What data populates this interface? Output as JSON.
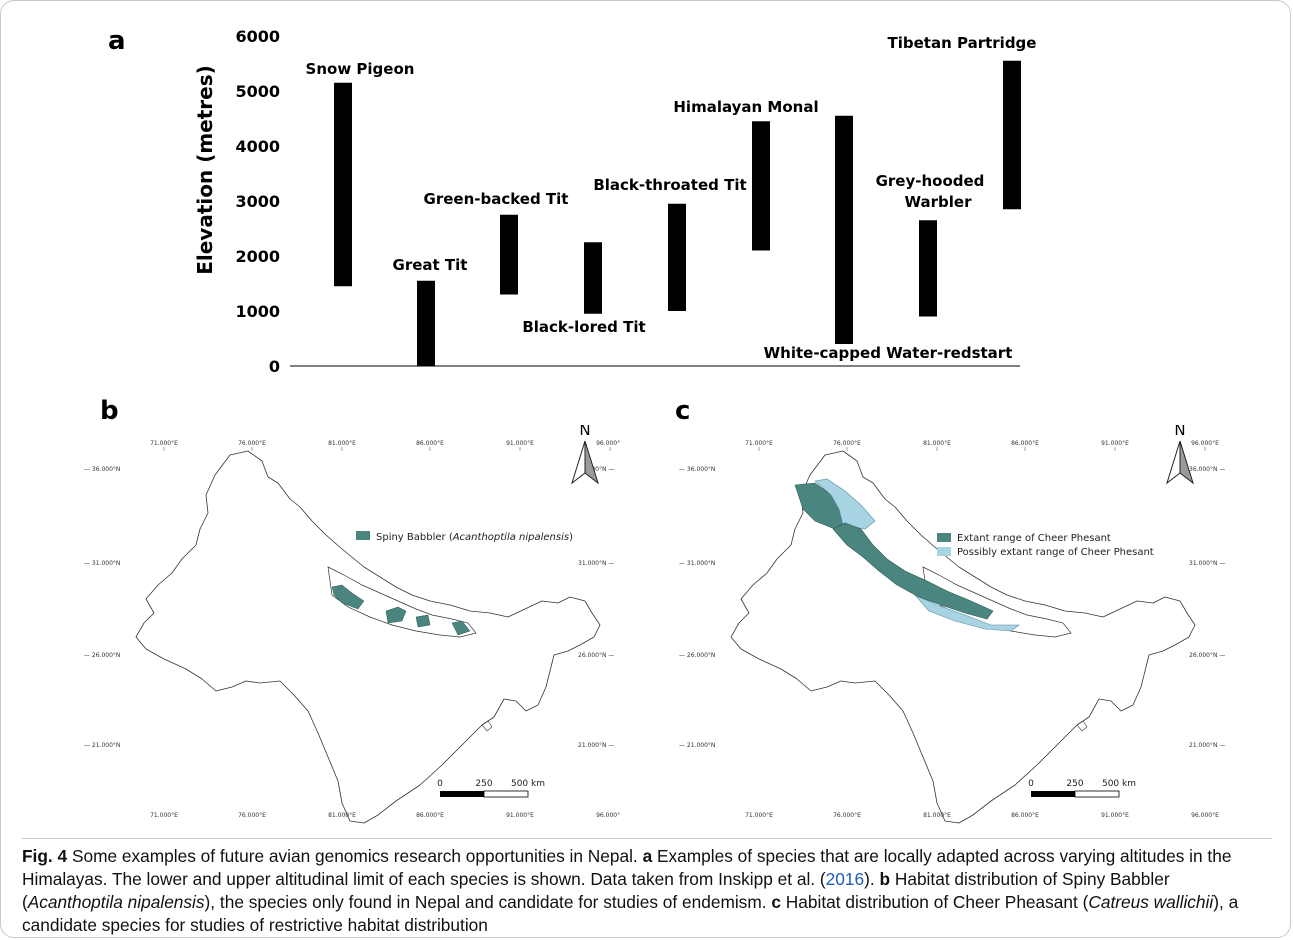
{
  "panel_a": {
    "letter": "a",
    "chart_data": {
      "type": "bar",
      "subtype": "floating-range",
      "ylabel": "Elevation (metres)",
      "ylim": [
        0,
        6000
      ],
      "yticks": [
        0,
        1000,
        2000,
        3000,
        4000,
        5000,
        6000
      ],
      "grid": false,
      "series": [
        {
          "category": "Snow Pigeon",
          "low": 1450,
          "high": 5150
        },
        {
          "category": "Great Tit",
          "low": 0,
          "high": 1550
        },
        {
          "category": "Green-backed Tit",
          "low": 1300,
          "high": 2750
        },
        {
          "category": "Black-lored Tit",
          "low": 950,
          "high": 2250
        },
        {
          "category": "Black-throated Tit",
          "low": 1000,
          "high": 2950
        },
        {
          "category": "Himalayan Monal",
          "low": 2100,
          "high": 4450
        },
        {
          "category": "White-capped Water-redstart",
          "low": 400,
          "high": 4550
        },
        {
          "category": "Grey-hooded Warbler",
          "low": 900,
          "high": 2650
        },
        {
          "category": "Tibetan Partridge",
          "low": 2850,
          "high": 5550
        }
      ]
    }
  },
  "panel_b": {
    "letter": "b",
    "north": "N",
    "legend": {
      "label_plain": "Spiny Babbler (",
      "label_italic": "Acanthoptila nipalensis",
      "label_end": ")",
      "color": "#4a8580"
    },
    "lon_labels": [
      "71.000°E",
      "76.000°E",
      "81.000°E",
      "86.000°E",
      "91.000°E",
      "96.000°E"
    ],
    "lat_labels": [
      "36.000°N",
      "31.000°N",
      "26.000°N",
      "21.000°N"
    ],
    "scale": {
      "ticks": [
        "0",
        "250",
        "500 km"
      ]
    }
  },
  "panel_c": {
    "letter": "c",
    "north": "N",
    "legend": [
      {
        "label": "Extant range of Cheer Phesant",
        "color": "#4a8580"
      },
      {
        "label": "Possibly extant range of Cheer Phesant",
        "color": "#a8d3e3"
      }
    ],
    "lon_labels": [
      "71.000°E",
      "76.000°E",
      "81.000°E",
      "86.000°E",
      "91.000°E",
      "96.000°E"
    ],
    "lat_labels": [
      "36.000°N",
      "31.000°N",
      "26.000°N",
      "21.000°N"
    ],
    "scale": {
      "ticks": [
        "0",
        "250",
        "500 km"
      ]
    }
  },
  "caption": {
    "fig": "Fig. 4",
    "t1": "Some examples of future avian genomics research opportunities in Nepal.",
    "a": "a",
    "t2": "Examples of species that are locally adapted across varying altitudes in the Himalayas. The lower and upper altitudinal limit of each species is shown. Data taken from Inskipp et al. (",
    "ref": "2016",
    "t3": ").",
    "b": "b",
    "t4": "Habitat distribution of Spiny Babbler (",
    "b_species": "Acanthoptila nipalensis",
    "t5": "), the species only found in Nepal and candidate for studies of endemism.",
    "c": "c",
    "t6": "Habitat distribution of Cheer Pheasant (",
    "c_species": "Catreus wallichii",
    "t7": "), a candidate species for studies of restrictive habitat distribution"
  }
}
